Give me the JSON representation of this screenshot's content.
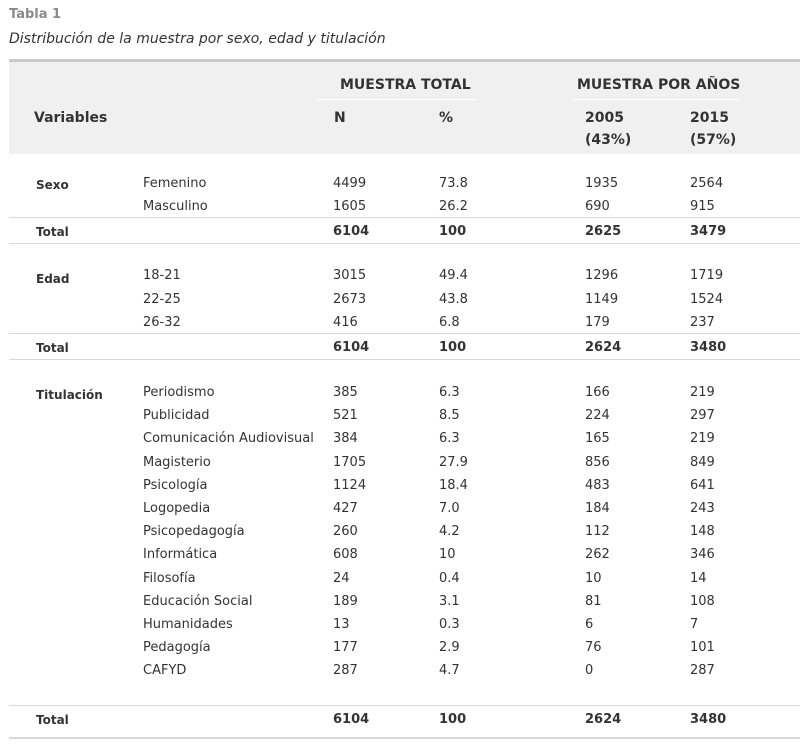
{
  "caption": {
    "label": "Tabla 1",
    "title": "Distribución de la muestra por sexo, edad y titulación"
  },
  "header": {
    "variables": "Variables",
    "group_total": "MUESTRA TOTAL",
    "group_years": "MUESTRA POR AÑOS",
    "n": "N",
    "pct": "%",
    "y2005": "2005",
    "y2005_share": "(43%)",
    "y2015": "2015",
    "y2015_share": "(57%)"
  },
  "sections": [
    {
      "category": "Sexo",
      "rows": [
        {
          "label": "Femenino",
          "n": "4499",
          "pct": "73.8",
          "y2005": "1935",
          "y2015": "2564"
        },
        {
          "label": "Masculino",
          "n": "1605",
          "pct": "26.2",
          "y2005": "690",
          "y2015": "915"
        }
      ],
      "total": {
        "label": "Total",
        "n": "6104",
        "pct": "100",
        "y2005": "2625",
        "y2015": "3479"
      }
    },
    {
      "category": "Edad",
      "rows": [
        {
          "label": "18-21",
          "n": "3015",
          "pct": "49.4",
          "y2005": "1296",
          "y2015": "1719"
        },
        {
          "label": "22-25",
          "n": "2673",
          "pct": "43.8",
          "y2005": "1149",
          "y2015": "1524"
        },
        {
          "label": "26-32",
          "n": "416",
          "pct": "6.8",
          "y2005": "179",
          "y2015": "237"
        }
      ],
      "total": {
        "label": "Total",
        "n": "6104",
        "pct": "100",
        "y2005": "2624",
        "y2015": "3480"
      }
    },
    {
      "category": "Titulación",
      "rows": [
        {
          "label": "Periodismo",
          "n": "385",
          "pct": "6.3",
          "y2005": "166",
          "y2015": "219"
        },
        {
          "label": "Publicidad",
          "n": "521",
          "pct": "8.5",
          "y2005": "224",
          "y2015": "297"
        },
        {
          "label": "Comunicación Audiovisual",
          "n": "384",
          "pct": "6.3",
          "y2005": "165",
          "y2015": "219"
        },
        {
          "label": "Magisterio",
          "n": "1705",
          "pct": "27.9",
          "y2005": "856",
          "y2015": "849"
        },
        {
          "label": "Psicología",
          "n": "1124",
          "pct": "18.4",
          "y2005": "483",
          "y2015": "641"
        },
        {
          "label": "Logopedia",
          "n": "427",
          "pct": "7.0",
          "y2005": "184",
          "y2015": "243"
        },
        {
          "label": "Psicopedagogía",
          "n": "260",
          "pct": "4.2",
          "y2005": "112",
          "y2015": "148"
        },
        {
          "label": "Informática",
          "n": "608",
          "pct": "10",
          "y2005": "262",
          "y2015": "346"
        },
        {
          "label": "Filosofía",
          "n": "24",
          "pct": "0.4",
          "y2005": "10",
          "y2015": "14"
        },
        {
          "label": "Educación Social",
          "n": "189",
          "pct": "3.1",
          "y2005": "81",
          "y2015": "108"
        },
        {
          "label": "Humanidades",
          "n": "13",
          "pct": "0.3",
          "y2005": "6",
          "y2015": "7"
        },
        {
          "label": "Pedagogía",
          "n": "177",
          "pct": "2.9",
          "y2005": "76",
          "y2015": "101"
        },
        {
          "label": "CAFYD",
          "n": "287",
          "pct": "4.7",
          "y2005": "0",
          "y2015": "287"
        }
      ],
      "total": {
        "label": "Total",
        "n": "6104",
        "pct": "100",
        "y2005": "2624",
        "y2015": "3480"
      }
    }
  ]
}
